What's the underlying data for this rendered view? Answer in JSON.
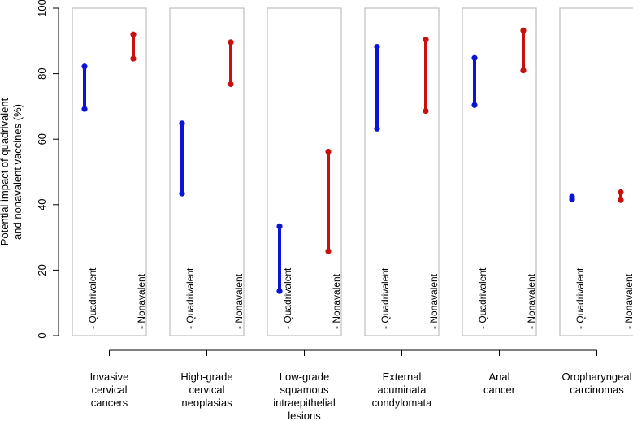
{
  "chart_data": {
    "type": "range",
    "ylabel_lines": [
      "Potential impact of quadrivalent",
      "and nonavalent vaccines (%)"
    ],
    "ylim": [
      0,
      100
    ],
    "yticks": [
      0,
      20,
      40,
      60,
      80,
      100
    ],
    "series": [
      {
        "name": "Quadrivalent",
        "color": "#0a14d8"
      },
      {
        "name": "Nonavalent",
        "color": "#c8100e"
      }
    ],
    "groups": [
      {
        "label_lines": [
          "Invasive",
          "cervical",
          "cancers"
        ],
        "ranges": [
          {
            "series": "Quadrivalent",
            "low": 69.2,
            "high": 82.2
          },
          {
            "series": "Nonavalent",
            "low": 84.6,
            "high": 92.0
          }
        ]
      },
      {
        "label_lines": [
          "High-grade",
          "cervical",
          "neoplasias"
        ],
        "ranges": [
          {
            "series": "Quadrivalent",
            "low": 43.4,
            "high": 64.8
          },
          {
            "series": "Nonavalent",
            "low": 76.8,
            "high": 89.6
          }
        ]
      },
      {
        "label_lines": [
          "Low-grade",
          "squamous",
          "intraepithelial",
          "lesions"
        ],
        "ranges": [
          {
            "series": "Quadrivalent",
            "low": 13.6,
            "high": 33.4
          },
          {
            "series": "Nonavalent",
            "low": 25.8,
            "high": 56.2
          }
        ]
      },
      {
        "label_lines": [
          "External",
          "acuminata",
          "condylomata"
        ],
        "ranges": [
          {
            "series": "Quadrivalent",
            "low": 63.2,
            "high": 88.2
          },
          {
            "series": "Nonavalent",
            "low": 68.6,
            "high": 90.4
          }
        ]
      },
      {
        "label_lines": [
          "Anal",
          "cancer"
        ],
        "ranges": [
          {
            "series": "Quadrivalent",
            "low": 70.4,
            "high": 84.8
          },
          {
            "series": "Nonavalent",
            "low": 81.0,
            "high": 93.2
          }
        ]
      },
      {
        "label_lines": [
          "Oropharyngeal",
          "carcinomas"
        ],
        "ranges": [
          {
            "series": "Quadrivalent",
            "low": 41.6,
            "high": 42.4
          },
          {
            "series": "Nonavalent",
            "low": 41.4,
            "high": 43.8
          }
        ]
      }
    ]
  }
}
